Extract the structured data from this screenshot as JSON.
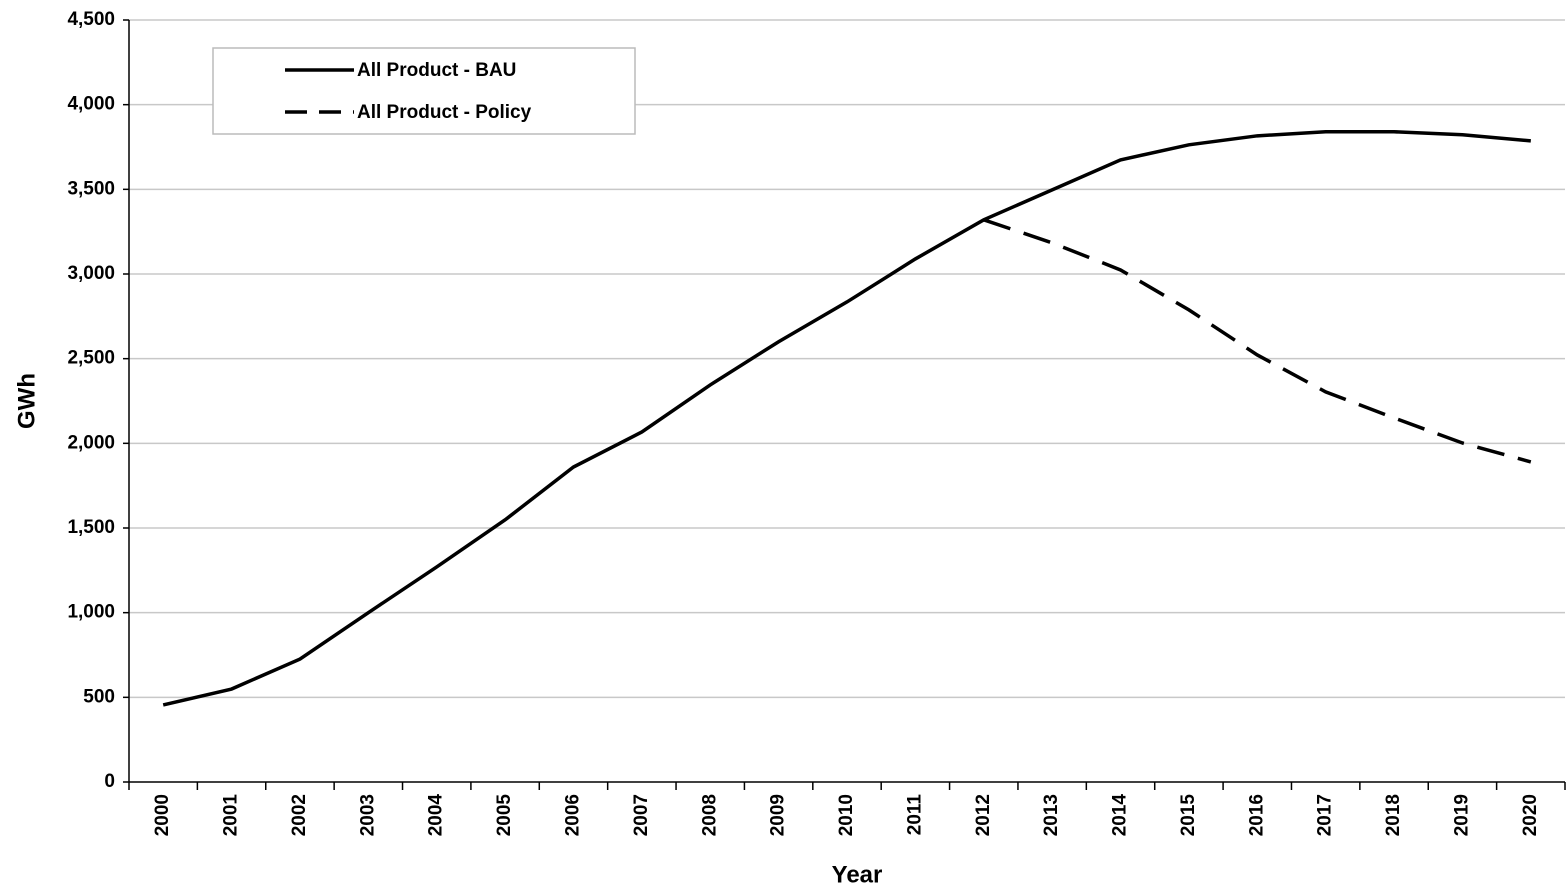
{
  "chart_data": {
    "type": "line",
    "x_label": "Year",
    "y_label": "GWh",
    "categories": [
      "2000",
      "2001",
      "2002",
      "2003",
      "2004",
      "2005",
      "2006",
      "2007",
      "2008",
      "2009",
      "2010",
      "2011",
      "2012",
      "2013",
      "2014",
      "2015",
      "2016",
      "2017",
      "2018",
      "2019",
      "2020"
    ],
    "series": [
      {
        "name": "All Product - BAU",
        "color": "#000000",
        "line_style": "solid",
        "values": [
          455,
          549,
          726,
          1000,
          1270,
          1548,
          1860,
          2067,
          2345,
          2600,
          2835,
          3089,
          3320,
          3497,
          3674,
          3763,
          3816,
          3840,
          3840,
          3822,
          3786
        ]
      },
      {
        "name": "All Product - Policy",
        "color": "#000000",
        "line_style": "dashed",
        "values": [
          null,
          null,
          null,
          null,
          null,
          null,
          null,
          null,
          null,
          null,
          null,
          null,
          3320,
          3184,
          3024,
          2788,
          2522,
          2304,
          2150,
          2002,
          1890
        ]
      }
    ],
    "ylim": [
      0,
      4500
    ],
    "yticks": [
      0,
      500,
      {
        "value": 1000,
        "label": "1,000"
      },
      {
        "value": 1500,
        "label": "1,500"
      },
      {
        "value": 2000,
        "label": "2,000"
      },
      {
        "value": 2500,
        "label": "2,500"
      },
      {
        "value": 3000,
        "label": "3,000"
      },
      {
        "value": 3500,
        "label": "3,500"
      },
      {
        "value": 4000,
        "label": "4,000"
      },
      {
        "value": 4500,
        "label": "4,500"
      }
    ],
    "grid": true,
    "legend": "upper left"
  }
}
